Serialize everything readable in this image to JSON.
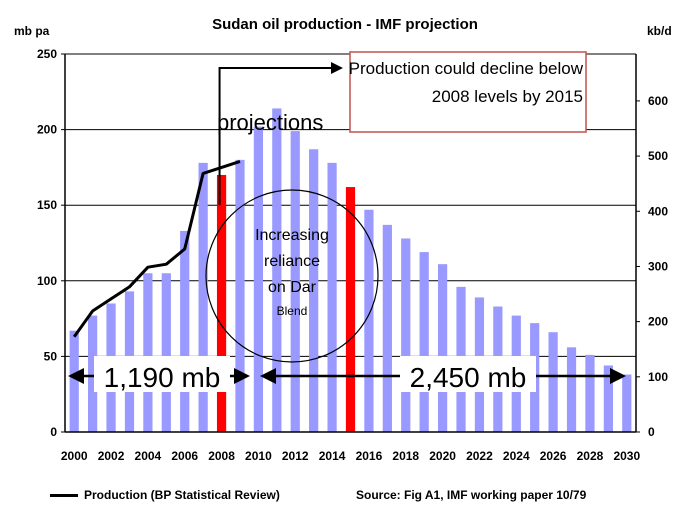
{
  "chart_data": {
    "type": "bar",
    "title": "Sudan oil production - IMF projection",
    "ylabel_left": "mb pa",
    "ylabel_right": "kb/d",
    "ylim_left": [
      0,
      250
    ],
    "ylim_right": [
      0,
      685
    ],
    "yticks_left": [
      0,
      50,
      100,
      150,
      200,
      250
    ],
    "yticks_right": [
      0,
      100,
      200,
      300,
      400,
      500,
      600
    ],
    "xticks": [
      "2000",
      "2002",
      "2004",
      "2006",
      "2008",
      "2010",
      "2012",
      "2014",
      "2016",
      "2018",
      "2020",
      "2022",
      "2024",
      "2026",
      "2028",
      "2030"
    ],
    "grid": true,
    "categories": [
      "2000",
      "2001",
      "2002",
      "2003",
      "2004",
      "2005",
      "2006",
      "2007",
      "2008",
      "2009",
      "2010",
      "2011",
      "2012",
      "2013",
      "2014",
      "2015",
      "2016",
      "2017",
      "2018",
      "2019",
      "2020",
      "2021",
      "2022",
      "2023",
      "2024",
      "2025",
      "2026",
      "2027",
      "2028",
      "2029",
      "2030"
    ],
    "series": [
      {
        "name": "IMF projection",
        "type": "bar",
        "color": "#9999ff",
        "highlight_color": "#ff0000",
        "highlight_categories": [
          "2008",
          "2015"
        ],
        "values": [
          67,
          77,
          85,
          93,
          105,
          105,
          133,
          178,
          170,
          180,
          202,
          214,
          199,
          187,
          178,
          162,
          147,
          137,
          128,
          119,
          111,
          96,
          89,
          83,
          77,
          72,
          66,
          56,
          51,
          44,
          38
        ]
      },
      {
        "name": "Production (BP Statistical Review)",
        "type": "line",
        "color": "#000000",
        "x": [
          "2000",
          "2001",
          "2002",
          "2003",
          "2004",
          "2005",
          "2006",
          "2007",
          "2008",
          "2009"
        ],
        "values": [
          63,
          80,
          88,
          96,
          109,
          111,
          121,
          171,
          175,
          179
        ]
      }
    ],
    "annotations": {
      "projections_label": "projections",
      "callout_line1": "Production could decline below",
      "callout_line2": "2008 levels by 2015",
      "circle_line1": "Increasing",
      "circle_line2": "reliance",
      "circle_line3": "on Dar",
      "circle_line4": "Blend",
      "left_total": "1,190 mb",
      "right_total": "2,450 mb"
    },
    "legend": "Production (BP Statistical Review)",
    "source": "Source: Fig A1, IMF working paper 10/79"
  }
}
